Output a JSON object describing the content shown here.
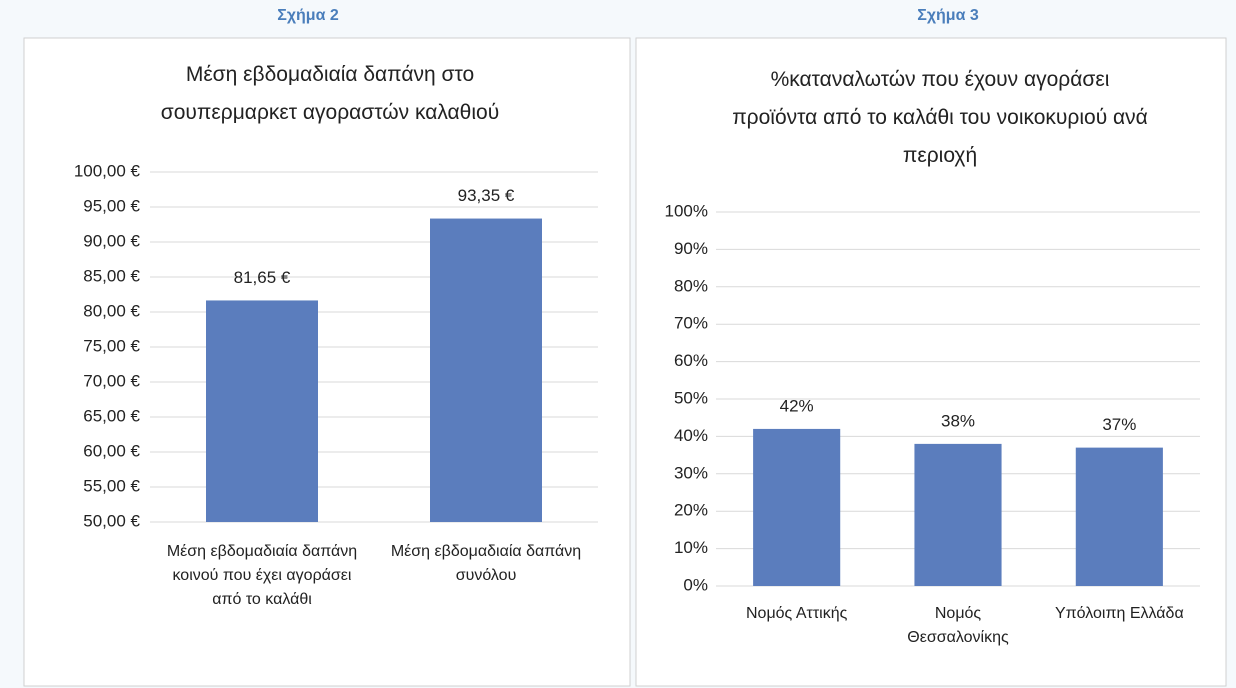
{
  "chart_data": [
    {
      "type": "bar",
      "caption": "Σχήμα 2",
      "title": "Μέση εβδομαδιαία δαπάνη στο σουπερμαρκετ αγοραστών καλαθιού",
      "categories": [
        "Μέση εβδομαδιαία δαπάνη κοινού που έχει αγοράσει από το καλάθι",
        "Μέση εβδομαδιαία δαπάνη συνόλου"
      ],
      "values": [
        81.65,
        93.35
      ],
      "value_labels": [
        "81,65 €",
        "93,35 €"
      ],
      "color": "#5b7dbd",
      "ylim": [
        50,
        100
      ],
      "yticks": [
        {
          "value": 50,
          "label": "50,00 €"
        },
        {
          "value": 55,
          "label": "55,00 €"
        },
        {
          "value": 60,
          "label": "60,00 €"
        },
        {
          "value": 65,
          "label": "65,00 €"
        },
        {
          "value": 70,
          "label": "70,00 €"
        },
        {
          "value": 75,
          "label": "75,00 €"
        },
        {
          "value": 80,
          "label": "80,00 €"
        },
        {
          "value": 85,
          "label": "85,00 €"
        },
        {
          "value": 90,
          "label": "90,00 €"
        },
        {
          "value": 95,
          "label": "95,00 €"
        },
        {
          "value": 100,
          "label": "100,00 €"
        }
      ],
      "grid": true
    },
    {
      "type": "bar",
      "caption": "Σχήμα 3",
      "title": "%καταναλωτών που έχουν αγοράσει προϊόντα από το καλάθι του νοικοκυριού ανά περιοχή",
      "categories": [
        "Νομός Αττικής",
        "Νομός Θεσσαλονίκης",
        "Υπόλοιπη Ελλάδα"
      ],
      "values": [
        42,
        38,
        37
      ],
      "value_labels": [
        "42%",
        "38%",
        "37%"
      ],
      "color": "#5b7dbd",
      "ylim": [
        0,
        100
      ],
      "yticks": [
        {
          "value": 0,
          "label": "0%"
        },
        {
          "value": 10,
          "label": "10%"
        },
        {
          "value": 20,
          "label": "20%"
        },
        {
          "value": 30,
          "label": "30%"
        },
        {
          "value": 40,
          "label": "40%"
        },
        {
          "value": 50,
          "label": "50%"
        },
        {
          "value": 60,
          "label": "60%"
        },
        {
          "value": 70,
          "label": "70%"
        },
        {
          "value": 80,
          "label": "80%"
        },
        {
          "value": 90,
          "label": "90%"
        },
        {
          "value": 100,
          "label": "100%"
        }
      ],
      "grid": true
    }
  ]
}
